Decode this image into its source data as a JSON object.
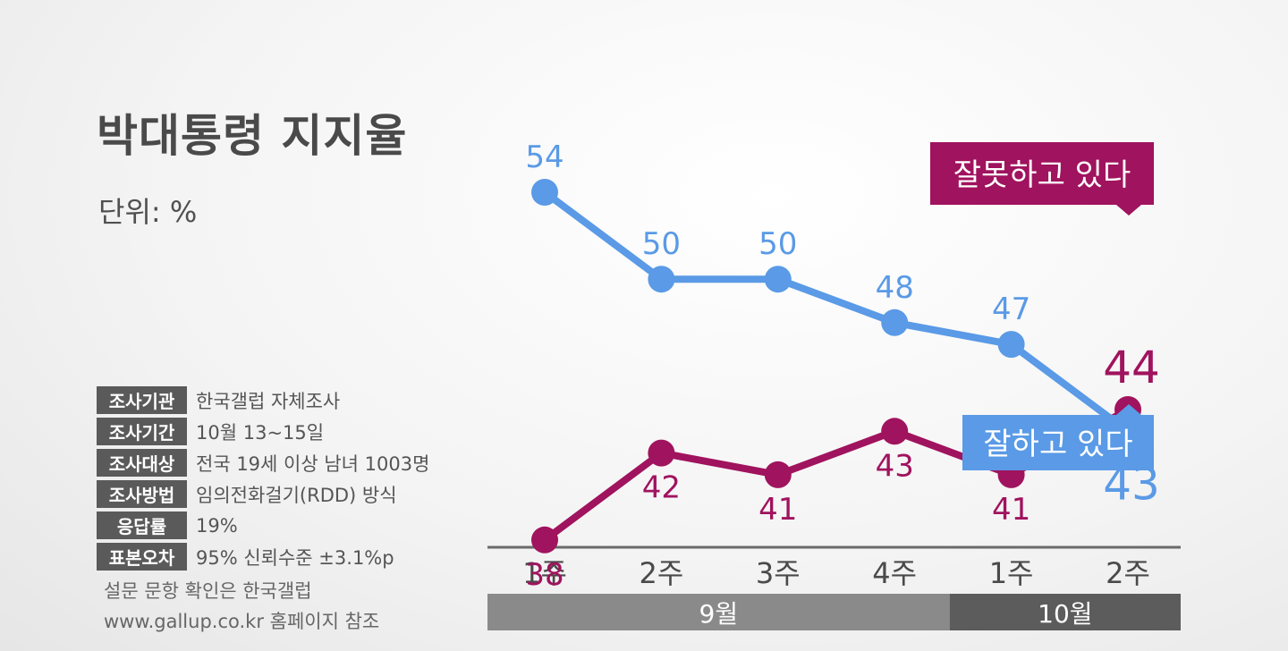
{
  "title": "박대통령 지지율",
  "unit_label": "단위: %",
  "survey_info": [
    {
      "key": "조사기관",
      "value": "한국갤럽 자체조사"
    },
    {
      "key": "조사기간",
      "value": "10월 13~15일"
    },
    {
      "key": "조사대상",
      "value": "전국 19세 이상 남녀 1003명"
    },
    {
      "key": "조사방법",
      "value": "임의전화걸기(RDD) 방식"
    },
    {
      "key": "응답률",
      "value": "19%"
    },
    {
      "key": "표본오차",
      "value": "95% 신뢰수준 ±3.1%p"
    }
  ],
  "note_line1": "설문 문항 확인은 한국갤럽",
  "note_line2": "www.gallup.co.kr 홈페이지 참조",
  "chart_data": {
    "type": "line",
    "categories": [
      "1주",
      "2주",
      "3주",
      "4주",
      "1주",
      "2주"
    ],
    "month_groups": [
      {
        "label": "9월",
        "count": 4,
        "color": "#8a8a8a"
      },
      {
        "label": "10월",
        "count": 2,
        "color": "#5c5c5c"
      }
    ],
    "series": [
      {
        "name": "잘하고 있다",
        "color": "#5a9ae6",
        "values": [
          54,
          50,
          50,
          48,
          47,
          43
        ]
      },
      {
        "name": "잘못하고 있다",
        "color": "#a0135e",
        "values": [
          38,
          42,
          41,
          43,
          41,
          44
        ]
      }
    ],
    "ylim": [
      35,
      57
    ],
    "grid": false
  }
}
